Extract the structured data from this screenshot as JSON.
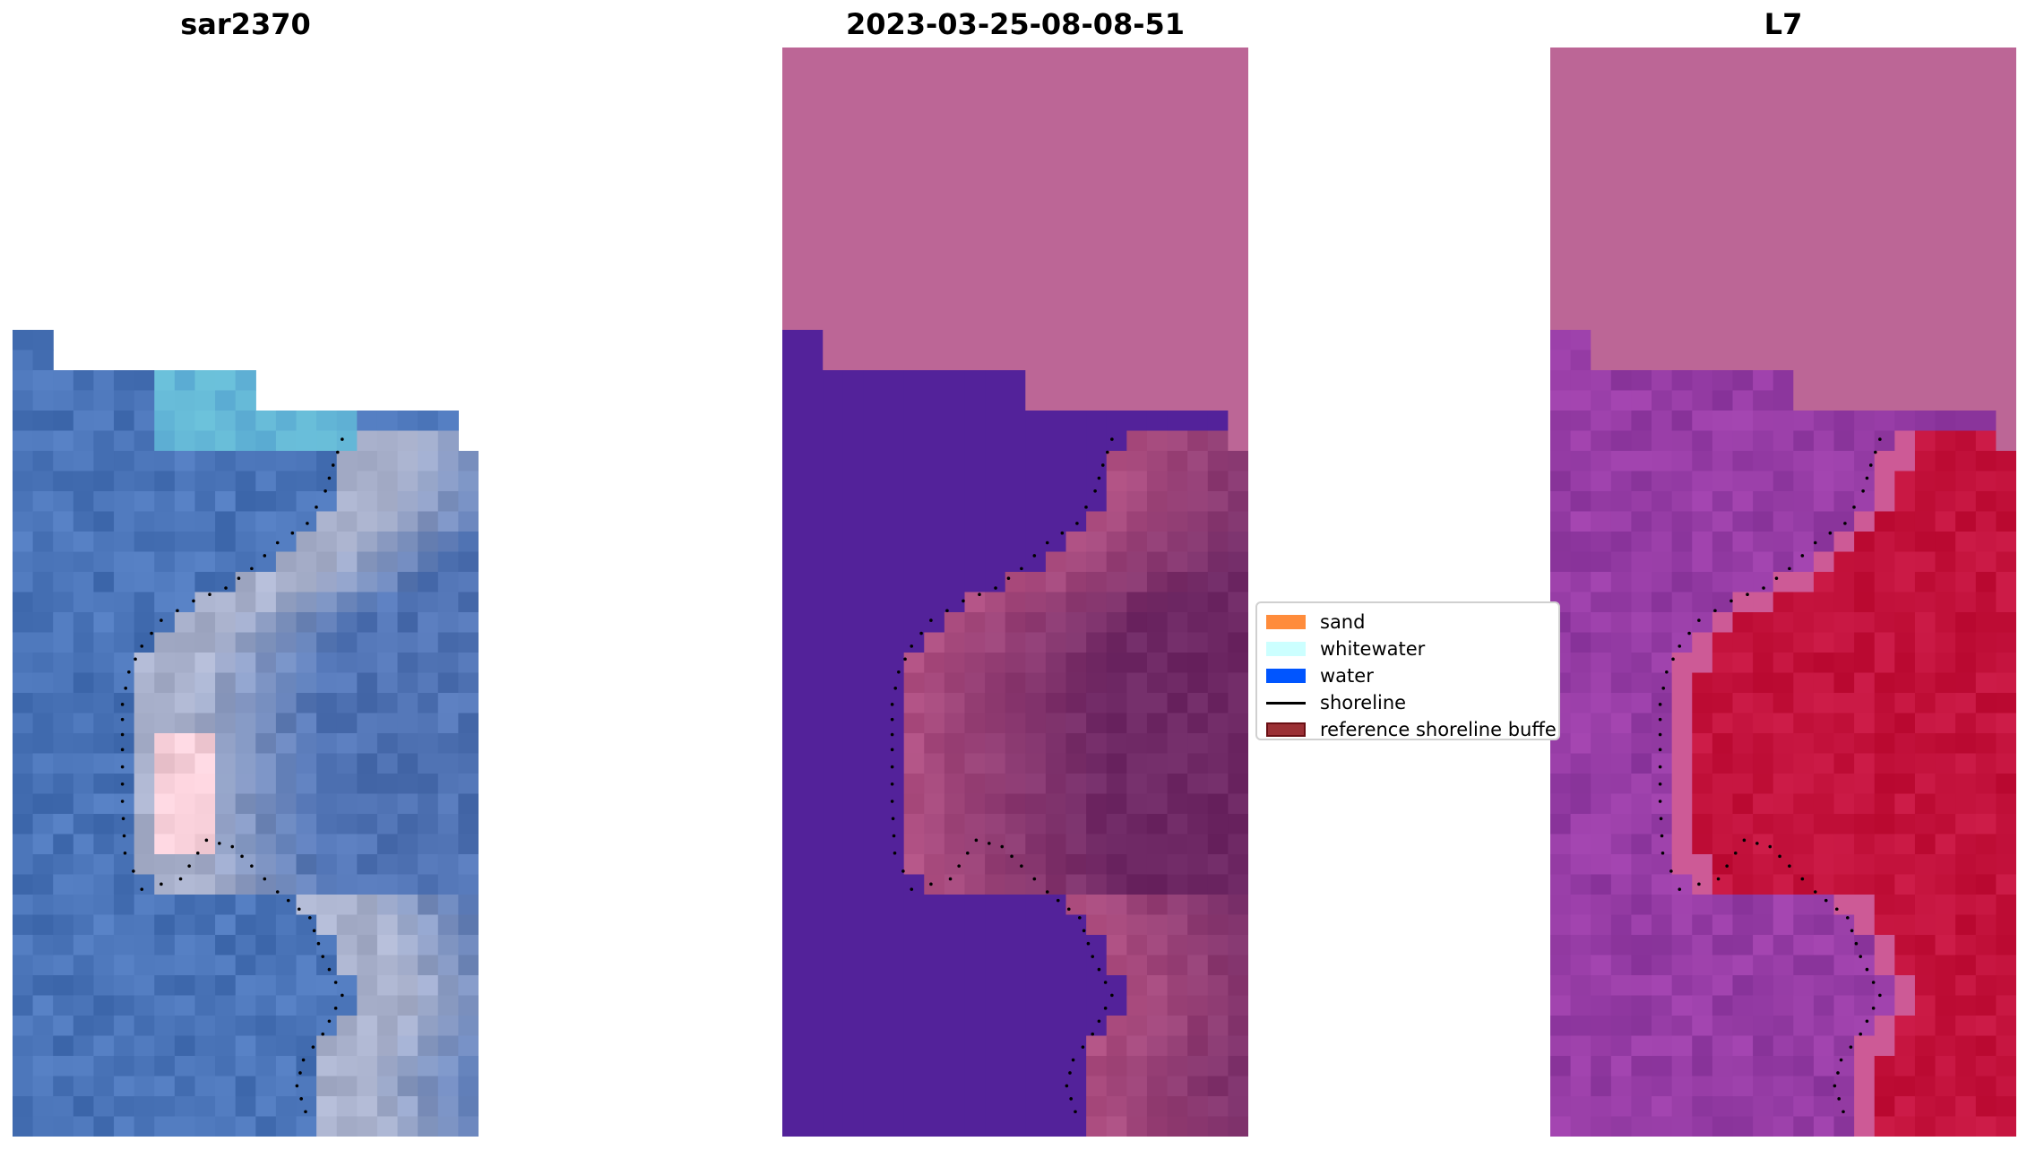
{
  "panels": [
    {
      "title": "sar2370",
      "kind": "rgb"
    },
    {
      "title": "2023-03-25-08-08-51",
      "kind": "classified"
    },
    {
      "title": "L7",
      "kind": "index"
    }
  ],
  "legend": {
    "items": [
      {
        "label": "sand",
        "color": "#ff8c3b",
        "type": "patch"
      },
      {
        "label": "whitewater",
        "color": "#ccffff",
        "type": "patch"
      },
      {
        "label": "water",
        "color": "#0055ff",
        "type": "patch"
      },
      {
        "label": "shoreline",
        "color": "#000000",
        "type": "line"
      },
      {
        "label": "reference shoreline buffe",
        "color": "#9b3035",
        "type": "patch-edged"
      }
    ]
  },
  "colors": {
    "nodata_pink": "#bc6696",
    "water_purple": "#53229a",
    "land_mauve": "#8a3a78",
    "index_purple": "#8e3aa0",
    "index_red": "#c0103c",
    "rgb_water": "#4a74b8",
    "rgb_land": "#a9b2cc"
  }
}
